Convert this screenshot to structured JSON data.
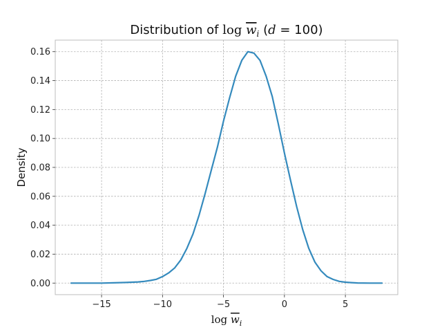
{
  "chart_data": {
    "type": "line",
    "title": {
      "prefix": "Distribution of ",
      "log_word": "log",
      "var": "w",
      "sub": "i",
      "open": " (",
      "param": "d",
      "eq": " = ",
      "val": "100",
      "close": ")"
    },
    "xlabel": {
      "log_word": "log",
      "var": "w",
      "sub": "i"
    },
    "ylabel": "Density",
    "xlim": [
      -18.8,
      9.3
    ],
    "ylim": [
      -0.008,
      0.168
    ],
    "xticks": [
      -15,
      -10,
      -5,
      0,
      5
    ],
    "xtick_labels": [
      "−15",
      "−10",
      "−5",
      "0",
      "5"
    ],
    "yticks": [
      0.0,
      0.02,
      0.04,
      0.06,
      0.08,
      0.1,
      0.12,
      0.14,
      0.16
    ],
    "ytick_labels": [
      "0.00",
      "0.02",
      "0.04",
      "0.06",
      "0.08",
      "0.10",
      "0.12",
      "0.14",
      "0.16"
    ],
    "grid": true,
    "line_color": "#348abd",
    "grid_color": "#b0b0b0",
    "series": [
      {
        "x": [
          -17.5,
          -16,
          -15,
          -14,
          -13,
          -12,
          -11.5,
          -11,
          -10.5,
          -10,
          -9.5,
          -9,
          -8.5,
          -8,
          -7.5,
          -7,
          -6.5,
          -6,
          -5.5,
          -5,
          -4.5,
          -4,
          -3.5,
          -3,
          -2.5,
          -2,
          -1.5,
          -1,
          -0.5,
          0,
          0.5,
          1,
          1.5,
          2,
          2.5,
          3,
          3.5,
          4,
          4.5,
          5,
          5.5,
          6,
          7,
          8
        ],
        "y": [
          0.0,
          0.0,
          0.0,
          0.0002,
          0.0004,
          0.0008,
          0.0012,
          0.0018,
          0.0026,
          0.0045,
          0.007,
          0.0105,
          0.016,
          0.024,
          0.034,
          0.047,
          0.062,
          0.078,
          0.094,
          0.112,
          0.128,
          0.143,
          0.154,
          0.16,
          0.159,
          0.154,
          0.143,
          0.129,
          0.11,
          0.09,
          0.071,
          0.053,
          0.037,
          0.024,
          0.0145,
          0.0085,
          0.0045,
          0.0025,
          0.0012,
          0.0006,
          0.0003,
          0.0001,
          0.0,
          0.0
        ]
      }
    ]
  }
}
